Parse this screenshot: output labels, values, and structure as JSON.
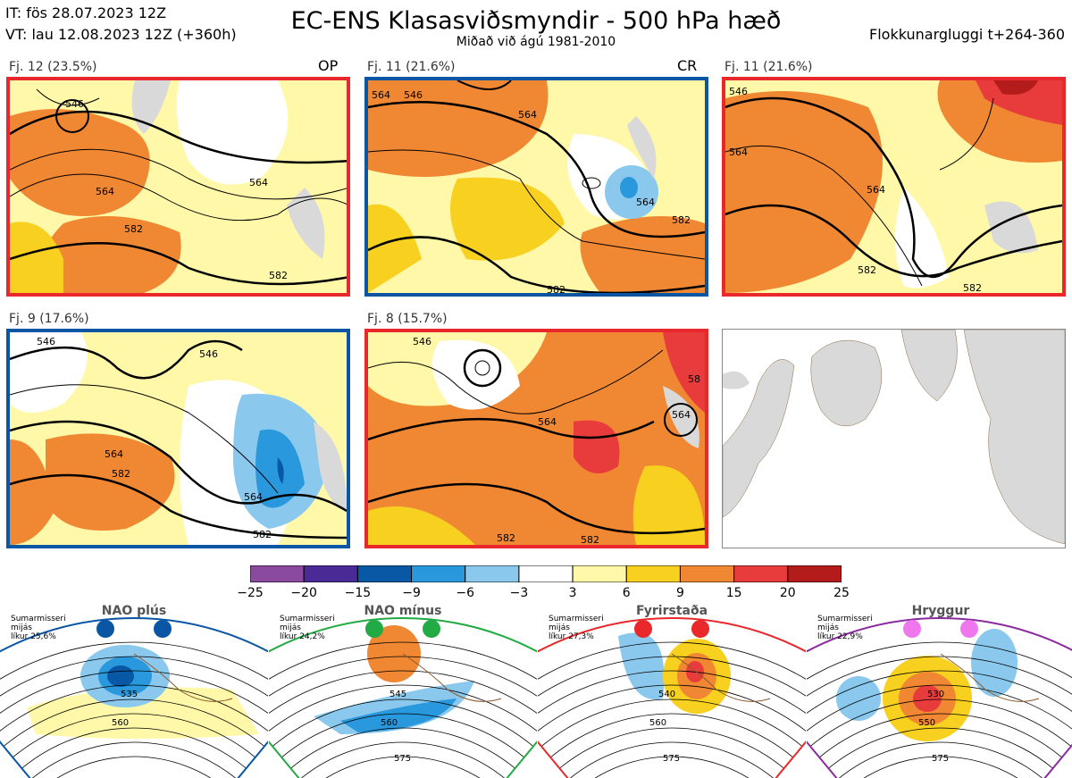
{
  "header": {
    "it_line": "IT: fös 28.07.2023 12Z",
    "vt_line": "VT: lau 12.08.2023 12Z  (+360h)",
    "title": "EC-ENS Klasasviðsmyndir - 500 hPa hæð",
    "subtitle": "Miðað við ágú 1981-2010",
    "window": "Flokkunargluggi t+264-360"
  },
  "colors": {
    "red_frame": "#e8282b",
    "blue_frame": "#0a56a5",
    "anom_pos": [
      "#fff8a8",
      "#f8d020",
      "#f08732",
      "#e83b3b",
      "#b41c1c"
    ],
    "anom_neg": [
      "#8ac8ee",
      "#2a98dc",
      "#0858a6"
    ],
    "land": "#d9d9d9"
  },
  "panels": [
    {
      "label": "Fj. 12 (23.5%)",
      "tag": "OP",
      "contours": [
        "546",
        "564",
        "582",
        "564",
        "582"
      ]
    },
    {
      "label": "Fj. 11 (21.6%)",
      "tag": "CR",
      "contours": [
        "564",
        "546",
        "564",
        "564",
        "582",
        "582"
      ]
    },
    {
      "label": "Fj. 11 (21.6%)",
      "tag": "",
      "contours": [
        "546",
        "564",
        "564",
        "582",
        "582"
      ]
    },
    {
      "label": "Fj. 9 (17.6%)",
      "tag": "",
      "contours": [
        "546",
        "546",
        "564",
        "582",
        "564",
        "582"
      ]
    },
    {
      "label": "Fj. 8 (15.7%)",
      "tag": "",
      "contours": [
        "546",
        "564",
        "564",
        "582",
        "582",
        "58"
      ]
    }
  ],
  "chart_data": {
    "type": "heatmap",
    "title": "EC-ENS Klasasviðsmyndir - 500 hPa hæð",
    "colorbar": {
      "ticks": [
        "−25",
        "−20",
        "−15",
        "−9",
        "−6",
        "−3",
        "3",
        "6",
        "9",
        "15",
        "20",
        "25"
      ],
      "bins": [
        -25,
        -20,
        -15,
        -9,
        -6,
        -3,
        3,
        6,
        9,
        15,
        20,
        25
      ],
      "colors": [
        "#8a4a9e",
        "#4a2a96",
        "#0858a6",
        "#2a98dc",
        "#8ac8ee",
        "#ffffff",
        "#fff8a8",
        "#f8d020",
        "#f08732",
        "#e83b3b",
        "#b41c1c"
      ]
    },
    "clusters": [
      {
        "name": "Fj. 12",
        "probability": 23.5,
        "tag": "OP"
      },
      {
        "name": "Fj. 11",
        "probability": 21.6,
        "tag": "CR"
      },
      {
        "name": "Fj. 11",
        "probability": 21.6
      },
      {
        "name": "Fj. 9",
        "probability": 17.6
      },
      {
        "name": "Fj. 8",
        "probability": 15.7
      }
    ]
  },
  "regimes": [
    {
      "name": "NAO plús",
      "season": "Sumarmisseri",
      "mode": "mijás",
      "prob": "líkur 25,6%",
      "dot": "#0a56a5",
      "frame": "#0a56a5",
      "contours": [
        "535",
        "560"
      ]
    },
    {
      "name": "NAO mínus",
      "season": "Sumarmisseri",
      "mode": "mijás",
      "prob": "líkur 24,2%",
      "dot": "#22aa44",
      "frame": "#22aa44",
      "contours": [
        "545",
        "560",
        "575"
      ]
    },
    {
      "name": "Fyrirstaða",
      "season": "Sumarmisseri",
      "mode": "mijás",
      "prob": "líkur 27,3%",
      "dot": "#e8282b",
      "frame": "#e8282b",
      "contours": [
        "540",
        "560",
        "575"
      ]
    },
    {
      "name": "Hryggur",
      "season": "Sumarmisseri",
      "mode": "mijás",
      "prob": "líkur 22,9%",
      "dot": "#ee77ee",
      "frame": "#8a2a9e",
      "contours": [
        "530",
        "550",
        "575"
      ]
    }
  ]
}
